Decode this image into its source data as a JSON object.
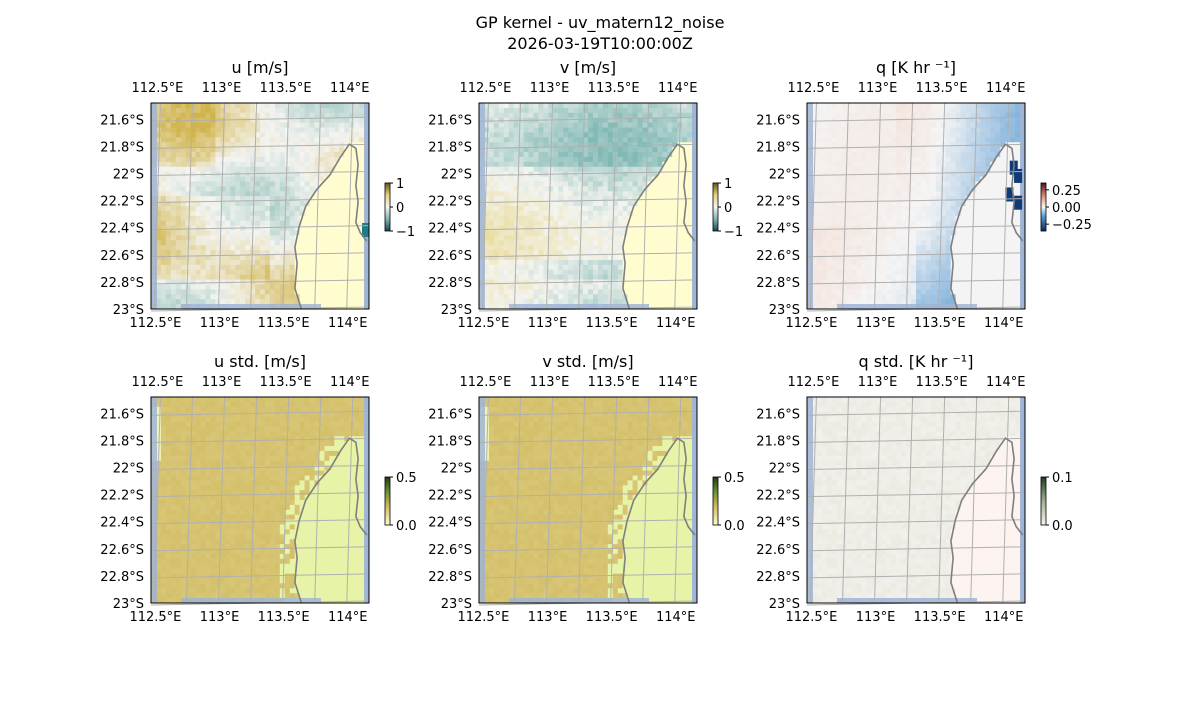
{
  "figure": {
    "title": "GP kernel - uv_matern12_noise",
    "subtitle": "2026-03-19T10:00:00Z"
  },
  "colors": {
    "ocean": "#9fb5d6",
    "land": "#f4f4f4",
    "grid": "#b0b0b0",
    "coast": "#7f7f7f",
    "tarn_neg": "#1d7c86",
    "tarn_mid": "#f4f4f0",
    "tarn_pos": "#d6b94a",
    "bal_neg": "#0e3a78",
    "bal_mid": "#f5f5f5",
    "bal_pos": "#7a1a1a"
  },
  "chart_data": [
    {
      "type": "heatmap",
      "title": "u [m/s]",
      "xticks": [
        "112.5°E",
        "113°E",
        "113.5°E",
        "114°E"
      ],
      "yticks": [
        "21.6°S",
        "21.8°S",
        "22°S",
        "22.2°S",
        "22.4°S",
        "22.6°S",
        "22.8°S",
        "23°S"
      ],
      "xlim": [
        112.45,
        114.15
      ],
      "ylim": [
        -23.0,
        -21.48
      ],
      "colormap": "tarn",
      "colorbar": {
        "ticks": [
          "1",
          "0",
          "−1"
        ],
        "range": [
          -1,
          1
        ]
      },
      "field": "u_mean"
    },
    {
      "type": "heatmap",
      "title": "v [m/s]",
      "xticks": [
        "112.5°E",
        "113°E",
        "113.5°E",
        "114°E"
      ],
      "yticks": [
        "21.6°S",
        "21.8°S",
        "22°S",
        "22.2°S",
        "22.4°S",
        "22.6°S",
        "22.8°S",
        "23°S"
      ],
      "xlim": [
        112.45,
        114.15
      ],
      "ylim": [
        -23.0,
        -21.48
      ],
      "colormap": "tarn",
      "colorbar": {
        "ticks": [
          "1",
          "0",
          "−1"
        ],
        "range": [
          -1,
          1
        ]
      },
      "field": "v_mean"
    },
    {
      "type": "heatmap",
      "title": "q [K hr ⁻¹]",
      "xticks": [
        "112.5°E",
        "113°E",
        "113.5°E",
        "114°E"
      ],
      "yticks": [
        "21.6°S",
        "21.8°S",
        "22°S",
        "22.2°S",
        "22.4°S",
        "22.6°S",
        "22.8°S",
        "23°S"
      ],
      "xlim": [
        112.45,
        114.15
      ],
      "ylim": [
        -23.0,
        -21.48
      ],
      "colormap": "balance",
      "colorbar": {
        "ticks": [
          "0.25",
          "0.00",
          "−0.25"
        ],
        "range": [
          -0.35,
          0.35
        ]
      },
      "field": "q_mean"
    },
    {
      "type": "heatmap",
      "title": "u std. [m/s]",
      "xticks": [
        "112.5°E",
        "113°E",
        "113.5°E",
        "114°E"
      ],
      "yticks": [
        "21.6°S",
        "21.8°S",
        "22°S",
        "22.2°S",
        "22.4°S",
        "22.6°S",
        "22.8°S",
        "23°S"
      ],
      "xlim": [
        112.45,
        114.15
      ],
      "ylim": [
        -23.0,
        -21.48
      ],
      "colormap": "speed",
      "colorbar": {
        "ticks": [
          "0.5",
          "0.0"
        ],
        "range": [
          0,
          0.5
        ]
      },
      "field": "u_std"
    },
    {
      "type": "heatmap",
      "title": "v std. [m/s]",
      "xticks": [
        "112.5°E",
        "113°E",
        "113.5°E",
        "114°E"
      ],
      "yticks": [
        "21.6°S",
        "21.8°S",
        "22°S",
        "22.2°S",
        "22.4°S",
        "22.6°S",
        "22.8°S",
        "23°S"
      ],
      "xlim": [
        112.45,
        114.15
      ],
      "ylim": [
        -23.0,
        -21.48
      ],
      "colormap": "speed",
      "colorbar": {
        "ticks": [
          "0.5",
          "0.0"
        ],
        "range": [
          0,
          0.5
        ]
      },
      "field": "v_std"
    },
    {
      "type": "heatmap",
      "title": "q std. [K hr ⁻¹]",
      "xticks": [
        "112.5°E",
        "113°E",
        "113.5°E",
        "114°E"
      ],
      "yticks": [
        "21.6°S",
        "21.8°S",
        "22°S",
        "22.2°S",
        "22.4°S",
        "22.6°S",
        "22.8°S",
        "23°S"
      ],
      "xlim": [
        112.45,
        114.15
      ],
      "ylim": [
        -23.0,
        -21.48
      ],
      "colormap": "amp_pale",
      "colorbar": {
        "ticks": [
          "0.1",
          "0.0"
        ],
        "range": [
          0,
          0.1
        ]
      },
      "field": "q_std"
    }
  ]
}
